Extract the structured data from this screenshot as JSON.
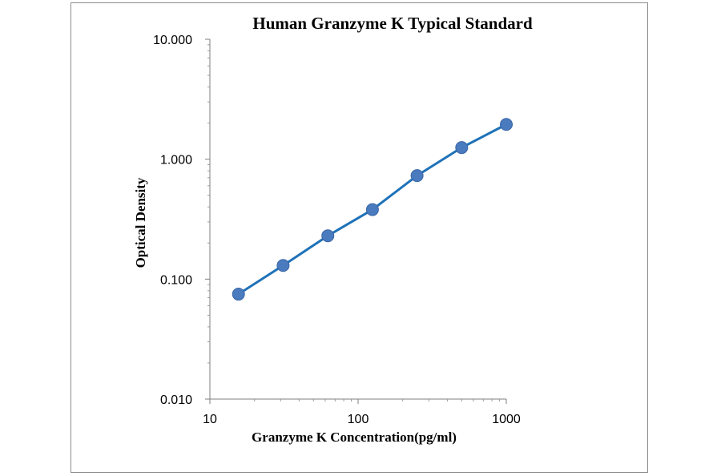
{
  "chart_data": {
    "type": "scatter",
    "title": "Human Granzyme K Typical Standard",
    "xlabel": "Granzyme K Concentration(pg/ml)",
    "ylabel": "Optical Density",
    "xscale": "log",
    "yscale": "log",
    "xlim": [
      10,
      1000
    ],
    "ylim": [
      0.01,
      10
    ],
    "xticks": [
      "10",
      "100",
      "1000"
    ],
    "yticks": [
      "0.010",
      "0.100",
      "1.000",
      "10.000"
    ],
    "grid": false,
    "legend": "none",
    "series": [
      {
        "x": [
          15.6,
          31.2,
          62.5,
          125,
          250,
          500,
          1000
        ],
        "y": [
          0.075,
          0.13,
          0.23,
          0.38,
          0.73,
          1.25,
          1.95
        ],
        "trendline": true
      }
    ],
    "colors": {
      "marker": "#4a7bbf",
      "line": "#1f72b8"
    }
  }
}
